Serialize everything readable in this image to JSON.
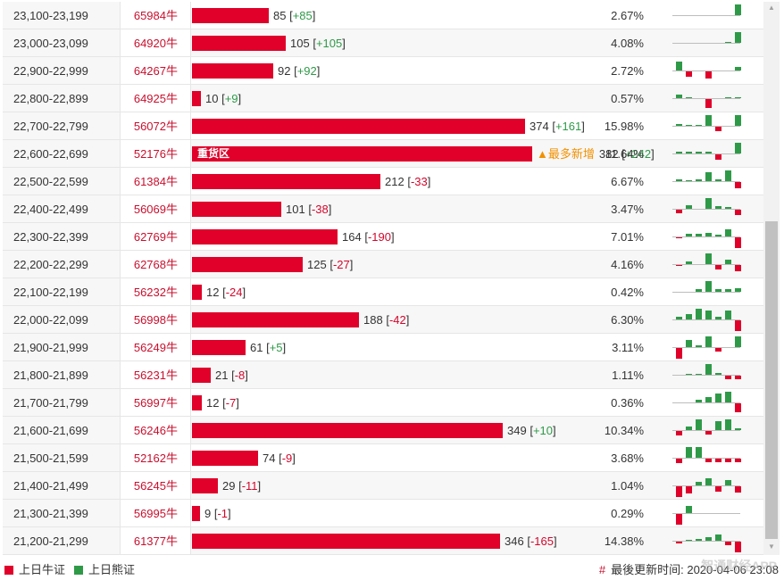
{
  "rows": [
    {
      "range": "23,100-23,199",
      "code": "65984牛",
      "count": "85",
      "change": "+85",
      "dir": "up",
      "bar": 0.075,
      "pct": "2.67%",
      "spark": [
        0,
        0,
        0,
        0,
        0,
        0,
        12
      ]
    },
    {
      "range": "23,000-23,099",
      "code": "64920牛",
      "count": "105",
      "change": "+105",
      "dir": "up",
      "bar": 0.092,
      "pct": "4.08%",
      "spark": [
        0,
        0,
        0,
        0,
        0,
        1,
        12
      ]
    },
    {
      "range": "22,900-22,999",
      "code": "64267牛",
      "count": "92",
      "change": "+92",
      "dir": "up",
      "bar": 0.08,
      "pct": "2.72%",
      "spark": [
        10,
        -6,
        0,
        -8,
        0,
        0,
        4
      ]
    },
    {
      "range": "22,800-22,899",
      "code": "64925牛",
      "count": "10",
      "change": "+9",
      "dir": "up",
      "bar": 0.009,
      "pct": "0.57%",
      "spark": [
        4,
        1,
        0,
        -10,
        0,
        1,
        1
      ]
    },
    {
      "range": "22,700-22,799",
      "code": "56072牛",
      "count": "374",
      "change": "+161",
      "dir": "up",
      "bar": 0.327,
      "pct": "15.98%",
      "spark": [
        2,
        1,
        1,
        12,
        -5,
        0,
        12
      ]
    },
    {
      "range": "22,600-22,699",
      "code": "52176牛",
      "count": "382",
      "change": "+242",
      "dir": "up",
      "bar": 0.334,
      "pct": "11.64%",
      "spark": [
        2,
        2,
        2,
        2,
        -6,
        0,
        12
      ],
      "zone": "重货区",
      "tag": "▲最多新增"
    },
    {
      "range": "22,500-22,599",
      "code": "61384牛",
      "count": "212",
      "change": "-33",
      "dir": "down",
      "bar": 0.185,
      "pct": "6.67%",
      "spark": [
        2,
        1,
        2,
        10,
        2,
        12,
        -7
      ]
    },
    {
      "range": "22,400-22,499",
      "code": "56069牛",
      "count": "101",
      "change": "-38",
      "dir": "down",
      "bar": 0.088,
      "pct": "3.47%",
      "spark": [
        -4,
        4,
        0,
        12,
        3,
        2,
        -6
      ]
    },
    {
      "range": "22,300-22,399",
      "code": "62769牛",
      "count": "164",
      "change": "-190",
      "dir": "down",
      "bar": 0.143,
      "pct": "7.01%",
      "spark": [
        -1,
        3,
        3,
        4,
        2,
        8,
        -12
      ]
    },
    {
      "range": "22,200-22,299",
      "code": "62768牛",
      "count": "125",
      "change": "-27",
      "dir": "down",
      "bar": 0.109,
      "pct": "4.16%",
      "spark": [
        -1,
        3,
        0,
        12,
        -5,
        5,
        -7
      ]
    },
    {
      "range": "22,100-22,199",
      "code": "56232牛",
      "count": "12",
      "change": "-24",
      "dir": "down",
      "bar": 0.01,
      "pct": "0.42%",
      "spark": [
        0,
        0,
        3,
        12,
        3,
        3,
        4
      ]
    },
    {
      "range": "22,000-22,099",
      "code": "56998牛",
      "count": "188",
      "change": "-42",
      "dir": "down",
      "bar": 0.164,
      "pct": "6.30%",
      "spark": [
        3,
        6,
        12,
        10,
        3,
        10,
        -12
      ]
    },
    {
      "range": "21,900-21,999",
      "code": "56249牛",
      "count": "61",
      "change": "+5",
      "dir": "up",
      "bar": 0.053,
      "pct": "3.11%",
      "spark": [
        -12,
        8,
        2,
        12,
        -4,
        0,
        12
      ]
    },
    {
      "range": "21,800-21,899",
      "code": "56231牛",
      "count": "21",
      "change": "-8",
      "dir": "down",
      "bar": 0.018,
      "pct": "1.11%",
      "spark": [
        0,
        1,
        1,
        12,
        2,
        -4,
        -4
      ]
    },
    {
      "range": "21,700-21,799",
      "code": "56997牛",
      "count": "12",
      "change": "-7",
      "dir": "down",
      "bar": 0.01,
      "pct": "0.36%",
      "spark": [
        0,
        0,
        3,
        6,
        10,
        12,
        -10
      ]
    },
    {
      "range": "21,600-21,699",
      "code": "56246牛",
      "count": "349",
      "change": "+10",
      "dir": "up",
      "bar": 0.305,
      "pct": "10.34%",
      "spark": [
        -5,
        4,
        12,
        -4,
        10,
        12,
        2
      ]
    },
    {
      "range": "21,500-21,599",
      "code": "52162牛",
      "count": "74",
      "change": "-9",
      "dir": "down",
      "bar": 0.065,
      "pct": "3.68%",
      "spark": [
        -5,
        12,
        12,
        -4,
        -4,
        -4,
        -4
      ]
    },
    {
      "range": "21,400-21,499",
      "code": "56245牛",
      "count": "29",
      "change": "-11",
      "dir": "down",
      "bar": 0.025,
      "pct": "1.04%",
      "spark": [
        -12,
        -8,
        4,
        8,
        -6,
        6,
        -7
      ]
    },
    {
      "range": "21,300-21,399",
      "code": "56995牛",
      "count": "9",
      "change": "-1",
      "dir": "down",
      "bar": 0.008,
      "pct": "0.29%",
      "spark": [
        -12,
        8,
        0,
        0,
        0,
        0,
        0
      ]
    },
    {
      "range": "21,200-21,299",
      "code": "61377牛",
      "count": "346",
      "change": "-165",
      "dir": "down",
      "bar": 0.303,
      "pct": "14.38%",
      "spark": [
        -2,
        1,
        2,
        4,
        7,
        -4,
        -12
      ]
    }
  ],
  "legend": {
    "bull_label": "上日牛证",
    "bear_label": "上日熊证"
  },
  "update": {
    "hash": "#",
    "label": "最後更新时间",
    "timestamp": "2020-04-06 23:08"
  },
  "watermark": "智通财经APP",
  "colors": {
    "bull": "#e0002a",
    "bear": "#2e9a48",
    "code_text": "#c8102e",
    "tag": "#f29100"
  }
}
